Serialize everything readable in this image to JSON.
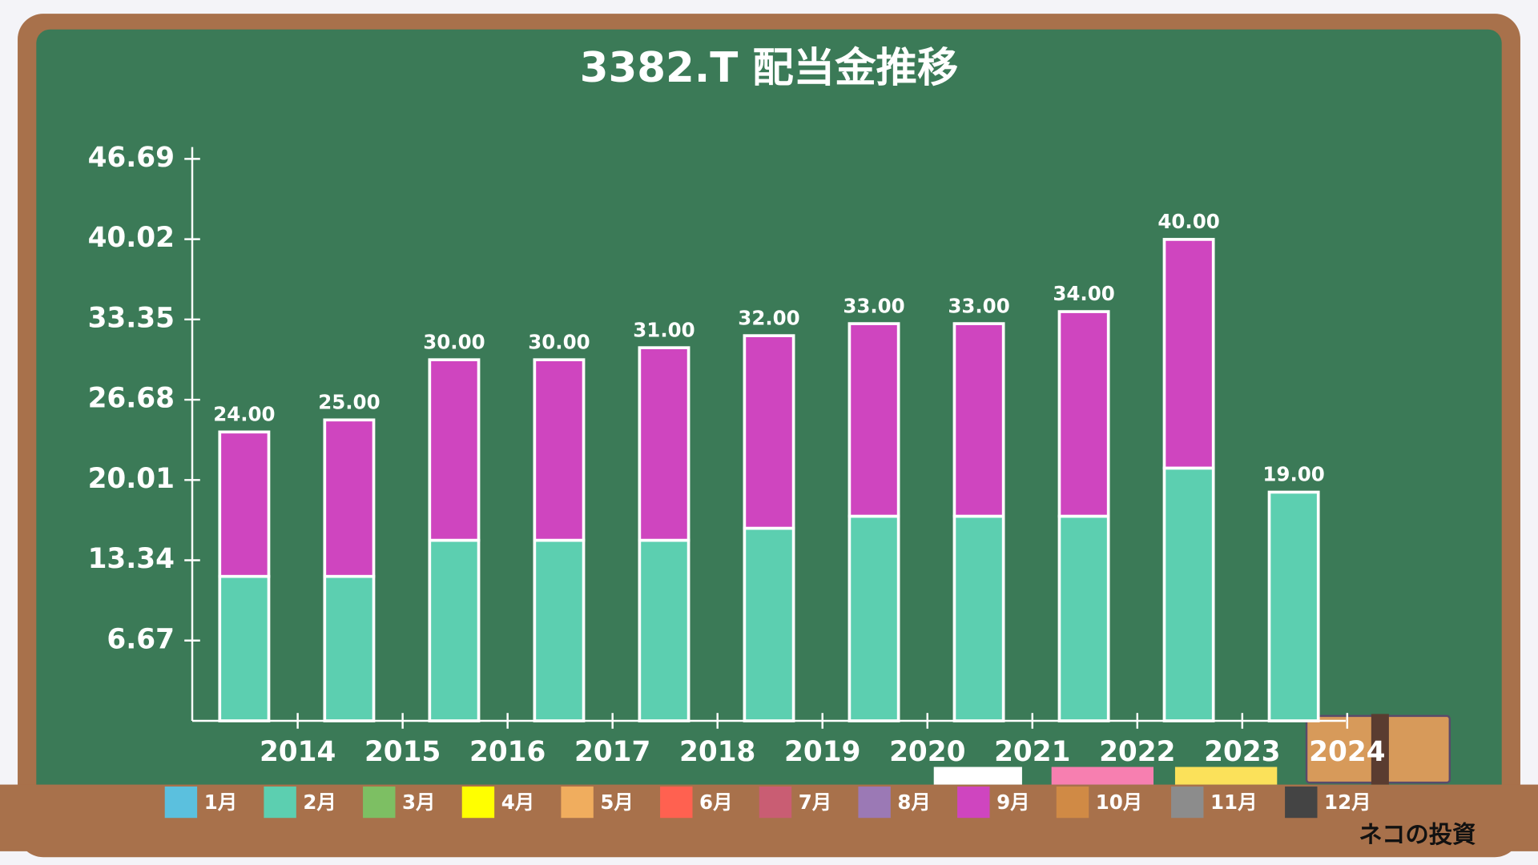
{
  "chart_data": {
    "type": "stacked_bar",
    "title": "3382.T 配当金推移",
    "categories": [
      "2014",
      "2015",
      "2016",
      "2017",
      "2018",
      "2019",
      "2020",
      "2021",
      "2022",
      "2023",
      "2024"
    ],
    "ylim": [
      0,
      46.69
    ],
    "yticks": [
      6.67,
      13.34,
      20.01,
      26.68,
      33.35,
      40.02,
      46.69
    ],
    "total_labels": [
      "24.00",
      "25.00",
      "30.00",
      "30.00",
      "31.00",
      "32.00",
      "33.00",
      "33.00",
      "34.00",
      "40.00",
      "19.00"
    ],
    "series": [
      {
        "name": "1月",
        "color": "#5bc0de",
        "values": [
          null,
          null,
          null,
          null,
          null,
          null,
          null,
          null,
          null,
          null,
          null
        ]
      },
      {
        "name": "2月",
        "color": "#5ccfb0",
        "values": [
          12,
          12,
          15,
          15,
          15,
          16,
          17,
          17,
          17,
          21,
          19
        ]
      },
      {
        "name": "3月",
        "color": "#7dbf63",
        "values": [
          null,
          null,
          null,
          null,
          null,
          null,
          null,
          null,
          null,
          null,
          null
        ]
      },
      {
        "name": "4月",
        "color": "#ffff00",
        "values": [
          null,
          null,
          null,
          null,
          null,
          null,
          null,
          null,
          null,
          null,
          null
        ]
      },
      {
        "name": "5月",
        "color": "#f0ad5e",
        "values": [
          null,
          null,
          null,
          null,
          null,
          null,
          null,
          null,
          null,
          null,
          null
        ]
      },
      {
        "name": "6月",
        "color": "#ff6150",
        "values": [
          null,
          null,
          null,
          null,
          null,
          null,
          null,
          null,
          null,
          null,
          null
        ]
      },
      {
        "name": "7月",
        "color": "#c95d73",
        "values": [
          null,
          null,
          null,
          null,
          null,
          null,
          null,
          null,
          null,
          null,
          null
        ]
      },
      {
        "name": "8月",
        "color": "#9b79b5",
        "values": [
          null,
          null,
          null,
          null,
          null,
          null,
          null,
          null,
          null,
          null,
          null
        ]
      },
      {
        "name": "9月",
        "color": "#cf45bf",
        "values": [
          12,
          13,
          15,
          15,
          16,
          16,
          16,
          16,
          17,
          19,
          null
        ]
      },
      {
        "name": "10月",
        "color": "#d08a45",
        "values": [
          null,
          null,
          null,
          null,
          null,
          null,
          null,
          null,
          null,
          null,
          null
        ]
      },
      {
        "name": "11月",
        "color": "#8c8c8c",
        "values": [
          null,
          null,
          null,
          null,
          null,
          null,
          null,
          null,
          null,
          null,
          null
        ]
      },
      {
        "name": "12月",
        "color": "#444444",
        "values": [
          null,
          null,
          null,
          null,
          null,
          null,
          null,
          null,
          null,
          null,
          null
        ]
      }
    ],
    "watermark": "ネコの投資"
  }
}
